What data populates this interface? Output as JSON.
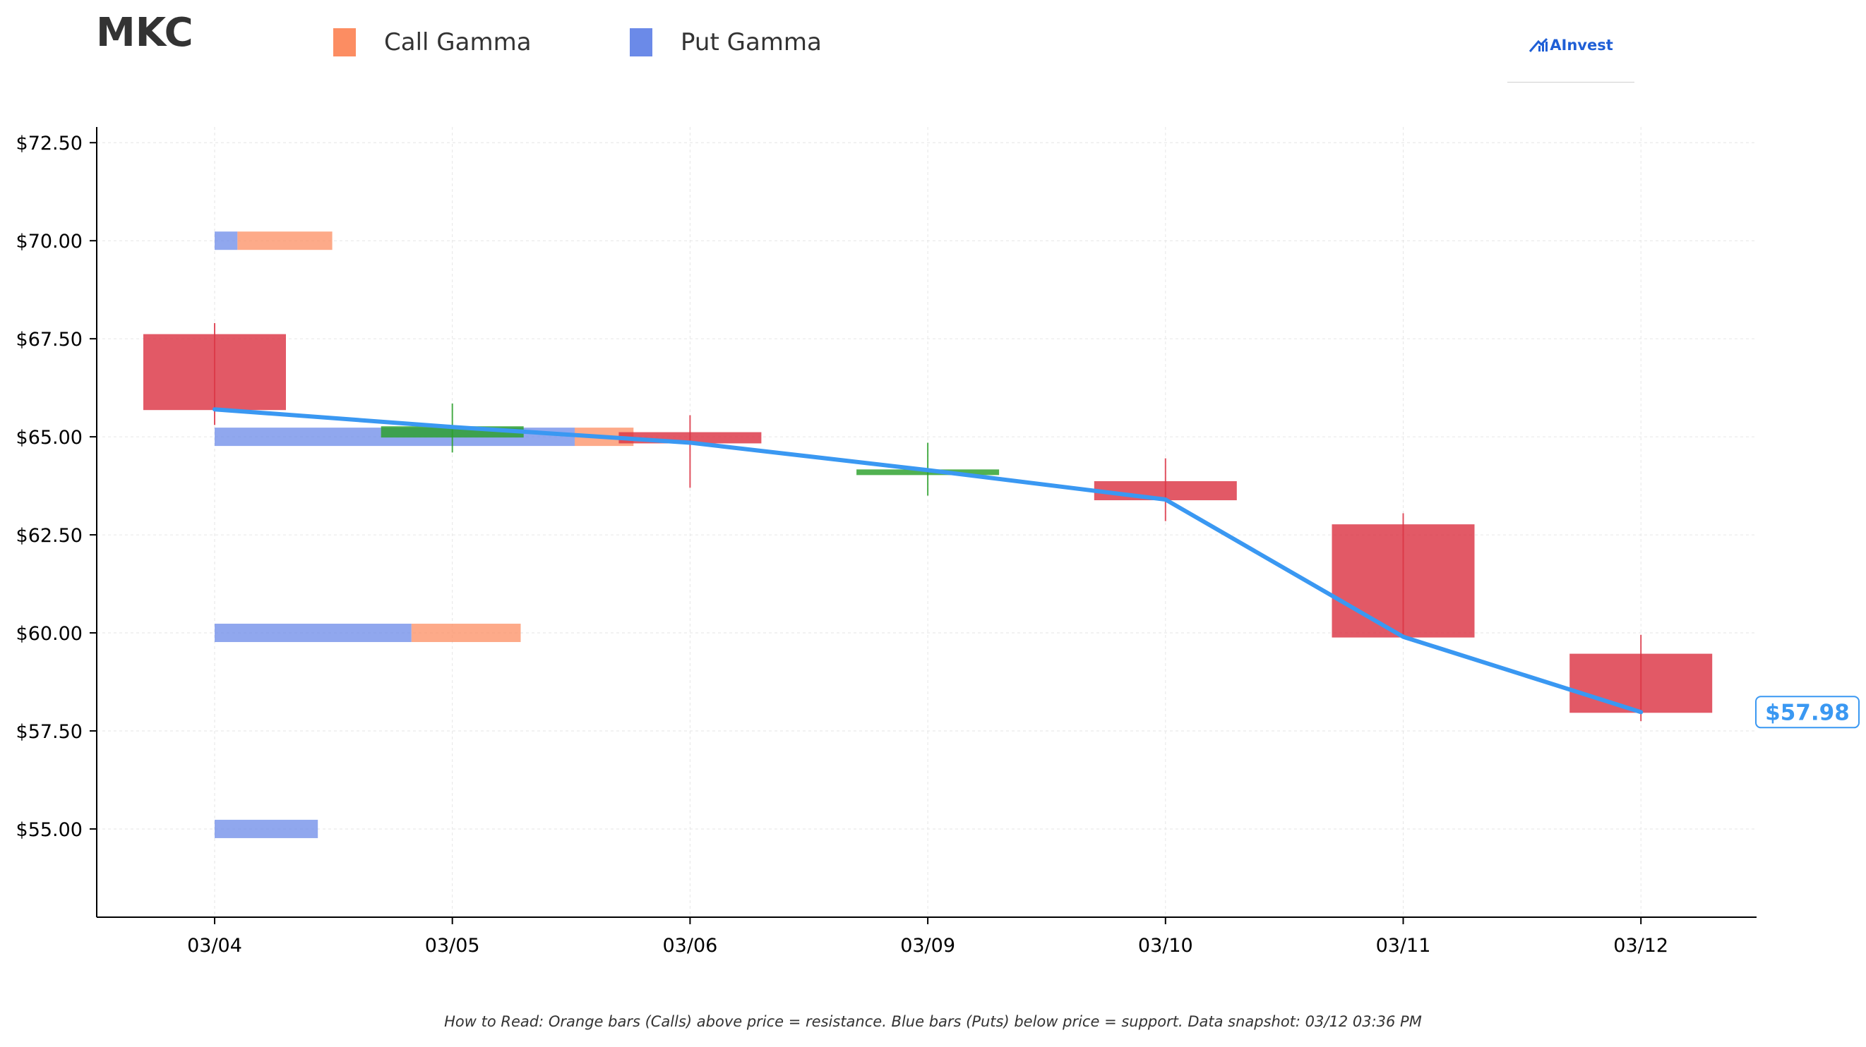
{
  "ticker": "MKC",
  "legend": [
    {
      "label": "Call Gamma",
      "color": "#fc8d62"
    },
    {
      "label": "Put Gamma",
      "color": "#6b8ae8"
    }
  ],
  "brand": {
    "name": "AInvest",
    "icon": "ainvest-logo-icon"
  },
  "footer": "How to Read: Orange bars (Calls) above price = resistance. Blue bars (Puts) below price = support. Data snapshot: 03/12 03:36 PM",
  "colors": {
    "up": "#2ca02c",
    "down": "#dc3545",
    "price_line": "#3a98f2",
    "call": "#fc8d62",
    "put": "#6b8ae8"
  },
  "chart_data": {
    "type": "candlestick",
    "title": "MKC",
    "categories": [
      "03/04",
      "03/05",
      "03/06",
      "03/09",
      "03/10",
      "03/11",
      "03/12"
    ],
    "ylim": [
      52.75,
      72.9
    ],
    "yticks": [
      55.0,
      57.5,
      60.0,
      62.5,
      65.0,
      67.5,
      70.0,
      72.5
    ],
    "ytick_labels": [
      "$55.00",
      "$57.50",
      "$60.00",
      "$62.50",
      "$65.00",
      "$67.50",
      "$70.00",
      "$72.50"
    ],
    "grid": true,
    "candles": [
      {
        "date": "03/04",
        "open": 67.6,
        "high": 67.9,
        "low": 65.3,
        "close": 65.7
      },
      {
        "date": "03/05",
        "open": 65.0,
        "high": 65.85,
        "low": 64.6,
        "close": 65.25
      },
      {
        "date": "03/06",
        "open": 65.1,
        "high": 65.55,
        "low": 63.7,
        "close": 64.85
      },
      {
        "date": "03/09",
        "open": 64.05,
        "high": 64.85,
        "low": 63.5,
        "close": 64.15
      },
      {
        "date": "03/10",
        "open": 63.85,
        "high": 64.45,
        "low": 62.85,
        "close": 63.4
      },
      {
        "date": "03/11",
        "open": 62.75,
        "high": 63.05,
        "low": 59.9,
        "close": 59.9
      },
      {
        "date": "03/12",
        "open": 59.45,
        "high": 59.95,
        "low": 57.75,
        "close": 57.98
      }
    ],
    "price_line": {
      "x": [
        "03/04",
        "03/05",
        "03/06",
        "03/09",
        "03/10",
        "03/11",
        "03/12"
      ],
      "values": [
        65.7,
        65.25,
        64.85,
        64.15,
        63.4,
        59.9,
        57.98
      ]
    },
    "last_price_label": "$57.98",
    "gamma_levels": [
      {
        "strike": 70.0,
        "put": 0.19,
        "call": 0.79
      },
      {
        "strike": 65.0,
        "put": 3.0,
        "call": 0.49
      },
      {
        "strike": 60.0,
        "put": 1.64,
        "call": 0.91
      },
      {
        "strike": 55.0,
        "put": 0.86,
        "call": 0
      }
    ]
  }
}
